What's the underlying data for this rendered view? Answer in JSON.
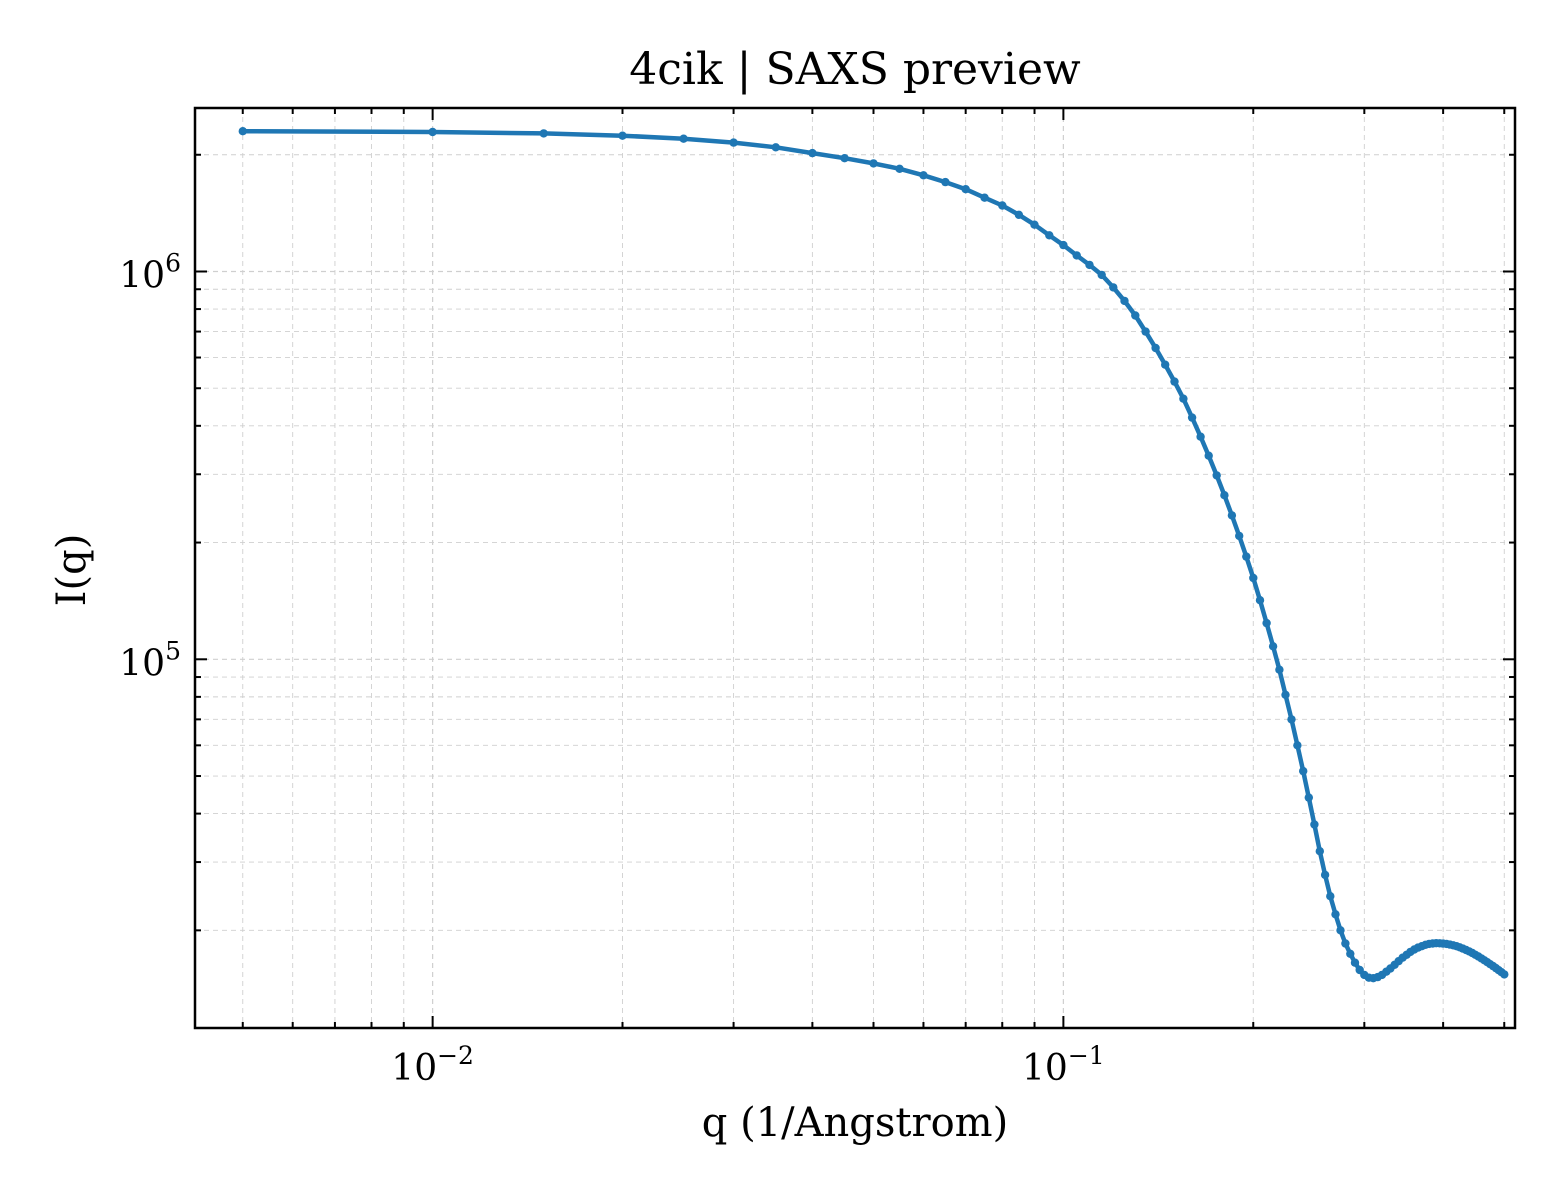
{
  "chart_data": {
    "type": "line",
    "title": "4cik | SAXS preview",
    "xlabel": "q (1/Angstrom)",
    "ylabel": "I(q)",
    "xscale": "log",
    "yscale": "log",
    "xlim": [
      0.0042,
      0.52
    ],
    "ylim": [
      11200,
      2640000
    ],
    "grid": true,
    "legend": "none",
    "x_ticks": [
      {
        "base": "10",
        "exp": "−2",
        "value": 0.01
      },
      {
        "base": "10",
        "exp": "−1",
        "value": 0.1
      }
    ],
    "y_ticks": [
      {
        "base": "10",
        "exp": "5",
        "value": 100000
      },
      {
        "base": "10",
        "exp": "6",
        "value": 1000000
      }
    ],
    "series": [
      {
        "color": "#1f77b4",
        "marker": "circle",
        "x": [
          0.005,
          0.01,
          0.015,
          0.02,
          0.025,
          0.03,
          0.035,
          0.04,
          0.045,
          0.05,
          0.055,
          0.06,
          0.065,
          0.07,
          0.075,
          0.08,
          0.085,
          0.09,
          0.095,
          0.1,
          0.105,
          0.11,
          0.115,
          0.12,
          0.125,
          0.13,
          0.135,
          0.14,
          0.145,
          0.15,
          0.155,
          0.16,
          0.165,
          0.17,
          0.175,
          0.18,
          0.185,
          0.19,
          0.195,
          0.2,
          0.205,
          0.21,
          0.215,
          0.22,
          0.225,
          0.23,
          0.235,
          0.24,
          0.245,
          0.25,
          0.255,
          0.26,
          0.265,
          0.27,
          0.275,
          0.28,
          0.285,
          0.29,
          0.295,
          0.3,
          0.305,
          0.31,
          0.315,
          0.32,
          0.325,
          0.33,
          0.335,
          0.34,
          0.345,
          0.35,
          0.355,
          0.36,
          0.365,
          0.37,
          0.375,
          0.38,
          0.385,
          0.39,
          0.395,
          0.4,
          0.405,
          0.41,
          0.415,
          0.42,
          0.425,
          0.43,
          0.435,
          0.44,
          0.445,
          0.45,
          0.455,
          0.46,
          0.465,
          0.47,
          0.475,
          0.48,
          0.485,
          0.49,
          0.495,
          0.5
        ],
        "y": [
          2300000,
          2290000,
          2270000,
          2240000,
          2200000,
          2150000,
          2090000,
          2020000,
          1960000,
          1900000,
          1840000,
          1770000,
          1700000,
          1630000,
          1550000,
          1480000,
          1400000,
          1320000,
          1240000,
          1170000,
          1100000,
          1040000,
          980000,
          910000,
          840000,
          770000,
          700000,
          635000,
          575000,
          520000,
          470000,
          420000,
          375000,
          335000,
          298000,
          265000,
          235000,
          208000,
          184000,
          162000,
          142000,
          124000,
          108000,
          94000,
          81000,
          70000,
          60000,
          51500,
          44000,
          37500,
          32000,
          27800,
          24500,
          22000,
          20000,
          18500,
          17400,
          16500,
          15800,
          15350,
          15100,
          15050,
          15150,
          15350,
          15650,
          15950,
          16300,
          16650,
          17000,
          17300,
          17600,
          17850,
          18050,
          18200,
          18350,
          18450,
          18500,
          18530,
          18520,
          18490,
          18450,
          18380,
          18300,
          18200,
          18080,
          17950,
          17800,
          17650,
          17480,
          17300,
          17120,
          16930,
          16740,
          16550,
          16360,
          16170,
          15980,
          15790,
          15600,
          15400
        ]
      }
    ]
  }
}
